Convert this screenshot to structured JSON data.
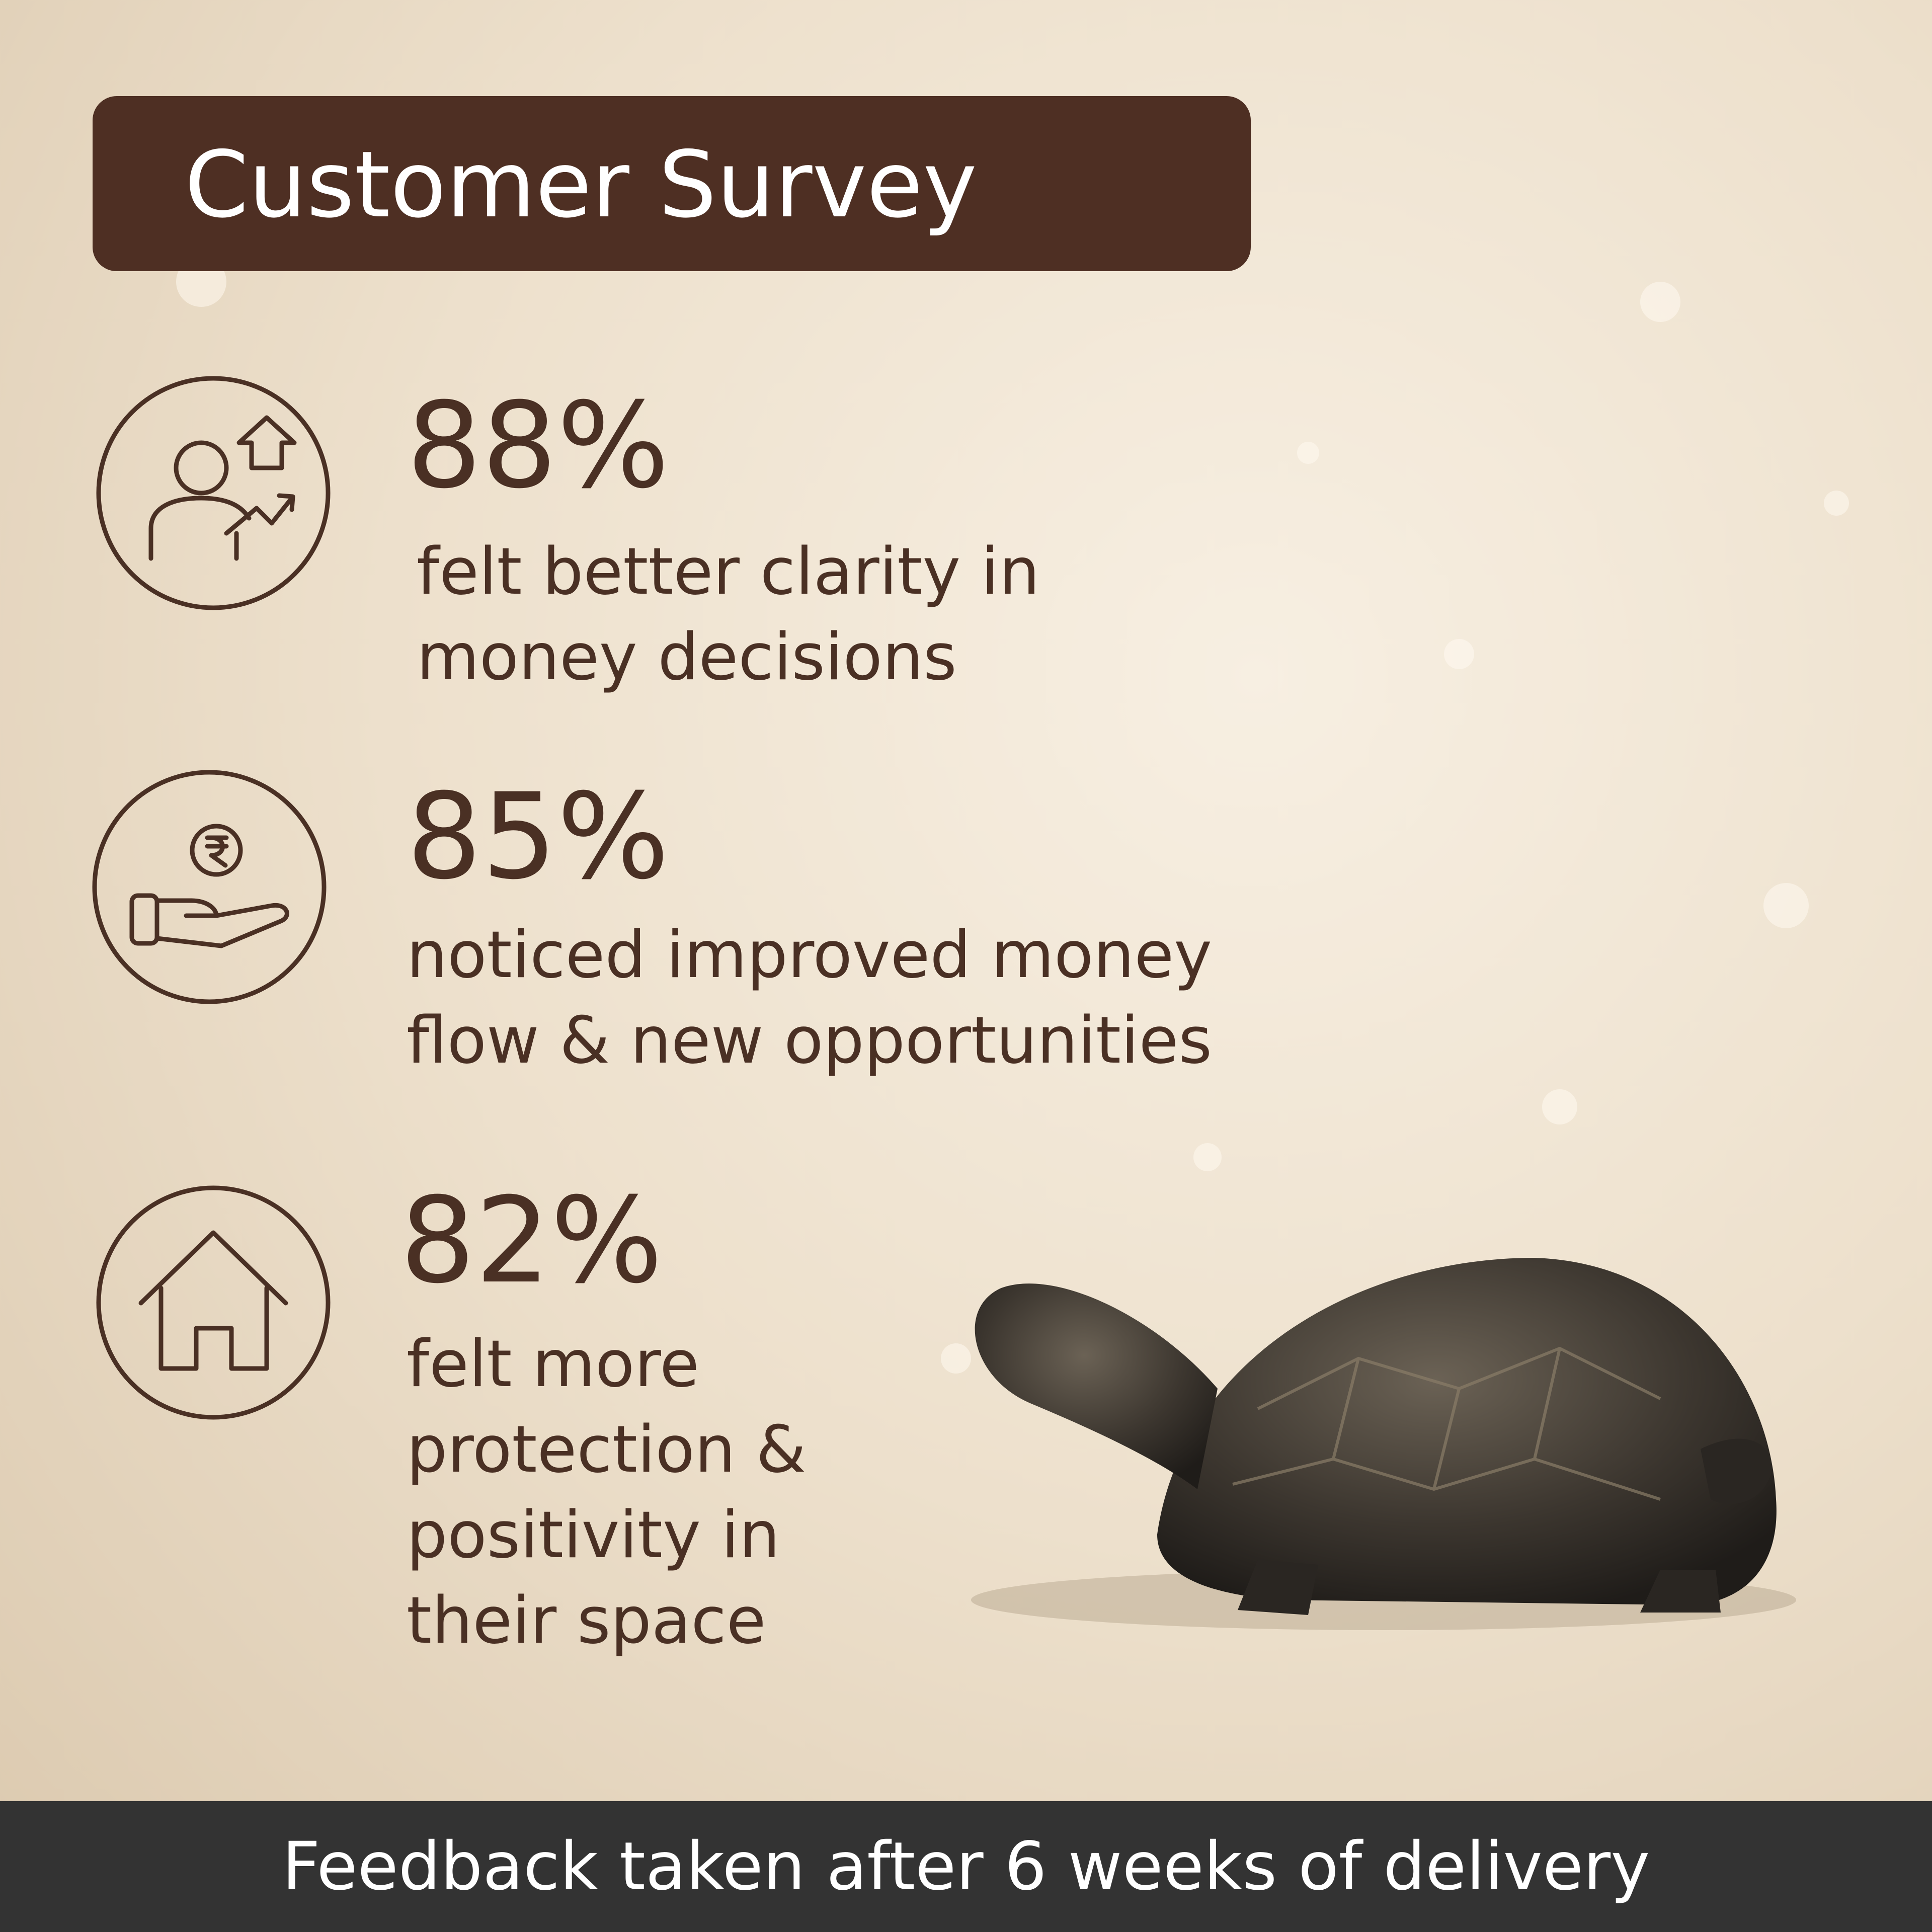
{
  "title": "Customer Survey",
  "stats": [
    {
      "value": "88%",
      "lines": [
        "felt better clarity in",
        "money decisions"
      ]
    },
    {
      "value": "85%",
      "lines": [
        "noticed improved money",
        "flow & new opportunities"
      ]
    },
    {
      "value": "82%",
      "lines": [
        "felt more",
        "protection &",
        "positivity in",
        "their space"
      ]
    }
  ],
  "footer": "Feedback taken after 6 weeks of delivery"
}
